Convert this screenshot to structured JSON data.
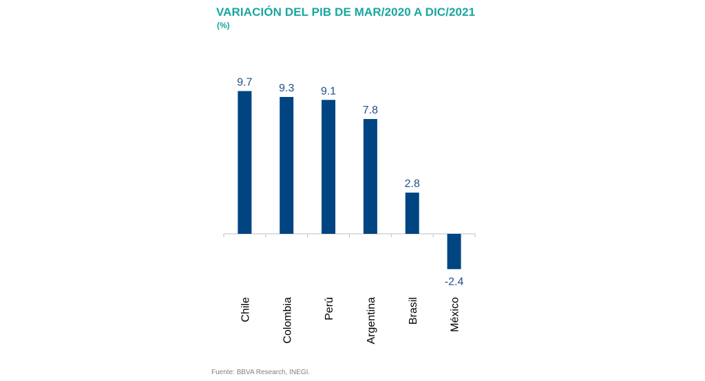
{
  "chart_data": {
    "type": "bar",
    "title": "VARIACIÓN DEL PIB DE MAR/2020 A DIC/2021",
    "subtitle": "(%)",
    "categories": [
      "Chile",
      "Colombia",
      "Perú",
      "Argentina",
      "Brasil",
      "México"
    ],
    "values": [
      9.7,
      9.3,
      9.1,
      7.8,
      2.8,
      -2.4
    ],
    "value_labels": [
      "9.7",
      "9.3",
      "9.1",
      "7.8",
      "2.8",
      "-2.4"
    ],
    "xlabel": "",
    "ylabel": "",
    "grid": false,
    "bar_color": "#004481",
    "label_color": "#1f4e8c"
  },
  "source": "Fuente: BBVA Research, INEGI."
}
